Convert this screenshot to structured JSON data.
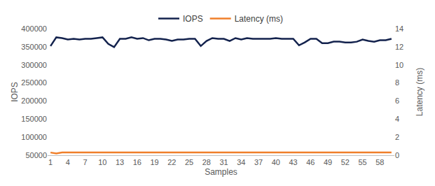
{
  "chart_data": {
    "type": "line",
    "x_label": "Samples",
    "y_label": "IOPS",
    "y2_label": "Latency (ms)",
    "x": [
      1,
      2,
      3,
      4,
      5,
      6,
      7,
      8,
      9,
      10,
      11,
      12,
      13,
      14,
      15,
      16,
      17,
      18,
      19,
      20,
      21,
      22,
      23,
      24,
      25,
      26,
      27,
      28,
      29,
      30,
      31,
      32,
      33,
      34,
      35,
      36,
      37,
      38,
      39,
      40,
      41,
      42,
      43,
      44,
      45,
      46,
      47,
      48,
      49,
      50,
      51,
      52,
      53,
      54,
      55,
      56,
      57,
      58,
      59,
      60
    ],
    "series": [
      {
        "name": "IOPS",
        "color": "#13224d",
        "values": [
          352000,
          376000,
          374000,
          370000,
          372000,
          370000,
          372000,
          372000,
          374000,
          376000,
          358000,
          349000,
          372000,
          372000,
          376000,
          372000,
          374000,
          368000,
          372000,
          372000,
          370000,
          366000,
          370000,
          370000,
          372000,
          372000,
          352000,
          366000,
          374000,
          372000,
          372000,
          366000,
          374000,
          370000,
          374000,
          372000,
          372000,
          372000,
          372000,
          374000,
          372000,
          372000,
          372000,
          354000,
          362000,
          372000,
          372000,
          360000,
          360000,
          364000,
          364000,
          362000,
          362000,
          364000,
          370000,
          366000,
          364000,
          368000,
          368000,
          372000
        ]
      },
      {
        "name": "Latency (ms)",
        "color": "#f07f2a",
        "axis": "y2",
        "values": [
          0.3,
          0.2,
          0.3,
          0.3,
          0.3,
          0.3,
          0.3,
          0.3,
          0.3,
          0.3,
          0.3,
          0.3,
          0.3,
          0.3,
          0.3,
          0.3,
          0.3,
          0.3,
          0.3,
          0.3,
          0.3,
          0.3,
          0.3,
          0.3,
          0.3,
          0.3,
          0.3,
          0.3,
          0.3,
          0.3,
          0.3,
          0.3,
          0.3,
          0.3,
          0.3,
          0.3,
          0.3,
          0.3,
          0.3,
          0.3,
          0.3,
          0.3,
          0.3,
          0.3,
          0.3,
          0.3,
          0.3,
          0.3,
          0.3,
          0.3,
          0.3,
          0.3,
          0.3,
          0.3,
          0.3,
          0.3,
          0.3,
          0.3,
          0.3,
          0.3
        ]
      }
    ],
    "xlim": [
      0.5,
      60.5
    ],
    "xticks": [
      1,
      4,
      7,
      10,
      13,
      16,
      19,
      22,
      25,
      28,
      31,
      34,
      37,
      40,
      43,
      46,
      49,
      52,
      55,
      58
    ],
    "ylim": [
      50000,
      400000
    ],
    "yticks": [
      50000,
      100000,
      150000,
      200000,
      250000,
      300000,
      350000,
      400000
    ],
    "y2lim": [
      0,
      14
    ],
    "y2ticks": [
      0,
      2,
      4,
      6,
      8,
      10,
      12,
      14
    ],
    "grid": false,
    "legend": "top"
  }
}
